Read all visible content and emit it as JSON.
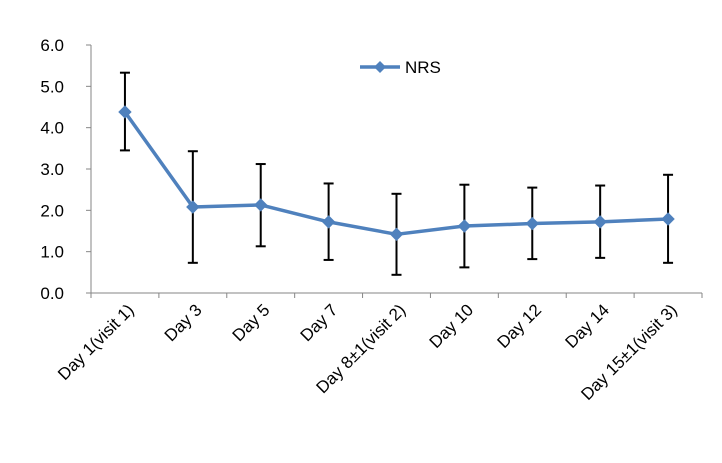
{
  "chart_data": {
    "type": "line",
    "categories": [
      "Day 1(visit 1)",
      "Day 3",
      "Day 5",
      "Day 7",
      "Day 8±1(visit 2)",
      "Day 10",
      "Day 12",
      "Day 14",
      "Day 15±1(visit 3)"
    ],
    "series": [
      {
        "name": "NRS",
        "values": [
          4.38,
          2.08,
          2.13,
          1.72,
          1.42,
          1.62,
          1.68,
          1.72,
          1.79
        ],
        "error_low": [
          3.45,
          0.73,
          1.13,
          0.8,
          0.44,
          0.62,
          0.82,
          0.85,
          0.73
        ],
        "error_high": [
          5.33,
          3.43,
          3.12,
          2.65,
          2.4,
          2.62,
          2.55,
          2.6,
          2.86
        ],
        "color": "#4f81bd",
        "marker": "diamond"
      }
    ],
    "yticks": [
      "0.0",
      "1.0",
      "2.0",
      "3.0",
      "4.0",
      "5.0",
      "6.0"
    ],
    "ylim": [
      0,
      6
    ],
    "grid": false,
    "legend": "top-center",
    "title": "",
    "xlabel": "",
    "ylabel": ""
  }
}
